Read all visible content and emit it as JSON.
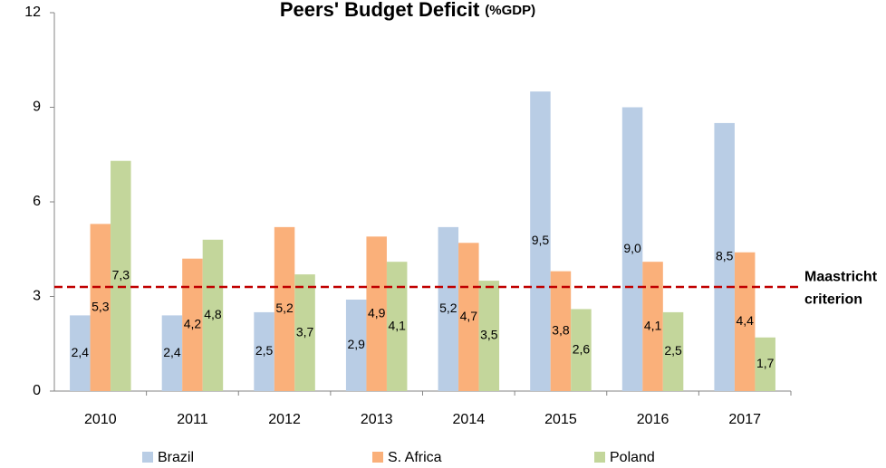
{
  "chart_data": {
    "type": "bar",
    "title": "Peers' Budget Deficit",
    "subtitle": "(%GDP)",
    "categories": [
      "2010",
      "2011",
      "2012",
      "2013",
      "2014",
      "2015",
      "2016",
      "2017"
    ],
    "series": [
      {
        "name": "Brazil",
        "color": "#b9cde5",
        "values": [
          2.4,
          2.4,
          2.5,
          2.9,
          5.2,
          9.5,
          9.0,
          8.5
        ],
        "value_labels": [
          "2,4",
          "2,4",
          "2,5",
          "2,9",
          "5,2",
          "9,5",
          "9,0",
          "8,5"
        ]
      },
      {
        "name": "S. Africa",
        "color": "#fab07a",
        "values": [
          5.3,
          4.2,
          5.2,
          4.9,
          4.7,
          3.8,
          4.1,
          4.4
        ],
        "value_labels": [
          "5,3",
          "4,2",
          "5,2",
          "4,9",
          "4,7",
          "3,8",
          "4,1",
          "4,4"
        ]
      },
      {
        "name": "Poland",
        "color": "#c3d69b",
        "values": [
          7.3,
          4.8,
          3.7,
          4.1,
          3.5,
          2.6,
          2.5,
          1.7
        ],
        "value_labels": [
          "7,3",
          "4,8",
          "3,7",
          "4,1",
          "3,5",
          "2,6",
          "2,5",
          "1,7"
        ]
      }
    ],
    "ylim": [
      0,
      12
    ],
    "yticks": [
      0,
      3,
      6,
      9,
      12
    ],
    "grid": false,
    "reference_line": {
      "value": 3.3,
      "color": "#c00000",
      "label": [
        "Maastricht",
        "criterion"
      ]
    },
    "legend": "bottom"
  }
}
